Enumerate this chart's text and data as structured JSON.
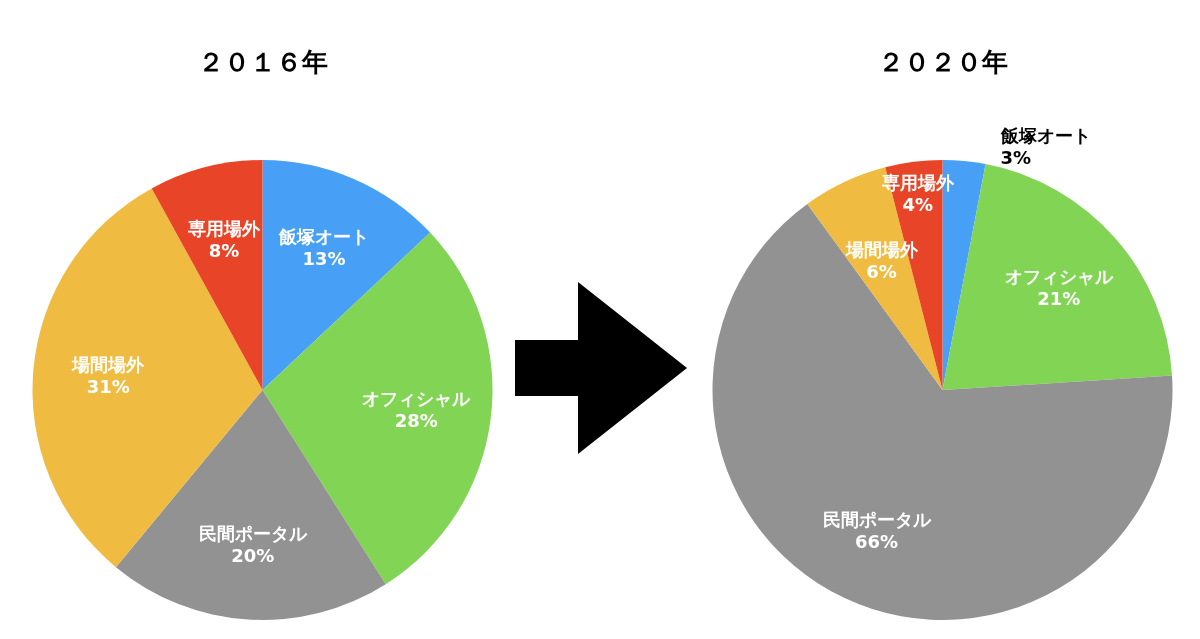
{
  "chart_data": [
    {
      "type": "pie",
      "title": "２０１６年",
      "categories": [
        "飯塚オート",
        "オフィシャル",
        "民間ポータル",
        "場間場外",
        "専用場外"
      ],
      "values": [
        13,
        28,
        20,
        31,
        8
      ],
      "value_labels": [
        "13%",
        "28%",
        "20%",
        "31%",
        "8%"
      ],
      "colors": [
        "#47a0f5",
        "#82d455",
        "#929292",
        "#efbb40",
        "#e84428"
      ]
    },
    {
      "type": "pie",
      "title": "２０２０年",
      "categories": [
        "飯塚オート",
        "オフィシャル",
        "民間ポータル",
        "場間場外",
        "専用場外"
      ],
      "values": [
        3,
        21,
        66,
        6,
        4
      ],
      "value_labels": [
        "3%",
        "21%",
        "66%",
        "6%",
        "4%"
      ],
      "colors": [
        "#47a0f5",
        "#82d455",
        "#929292",
        "#efbb40",
        "#e84428"
      ]
    }
  ]
}
